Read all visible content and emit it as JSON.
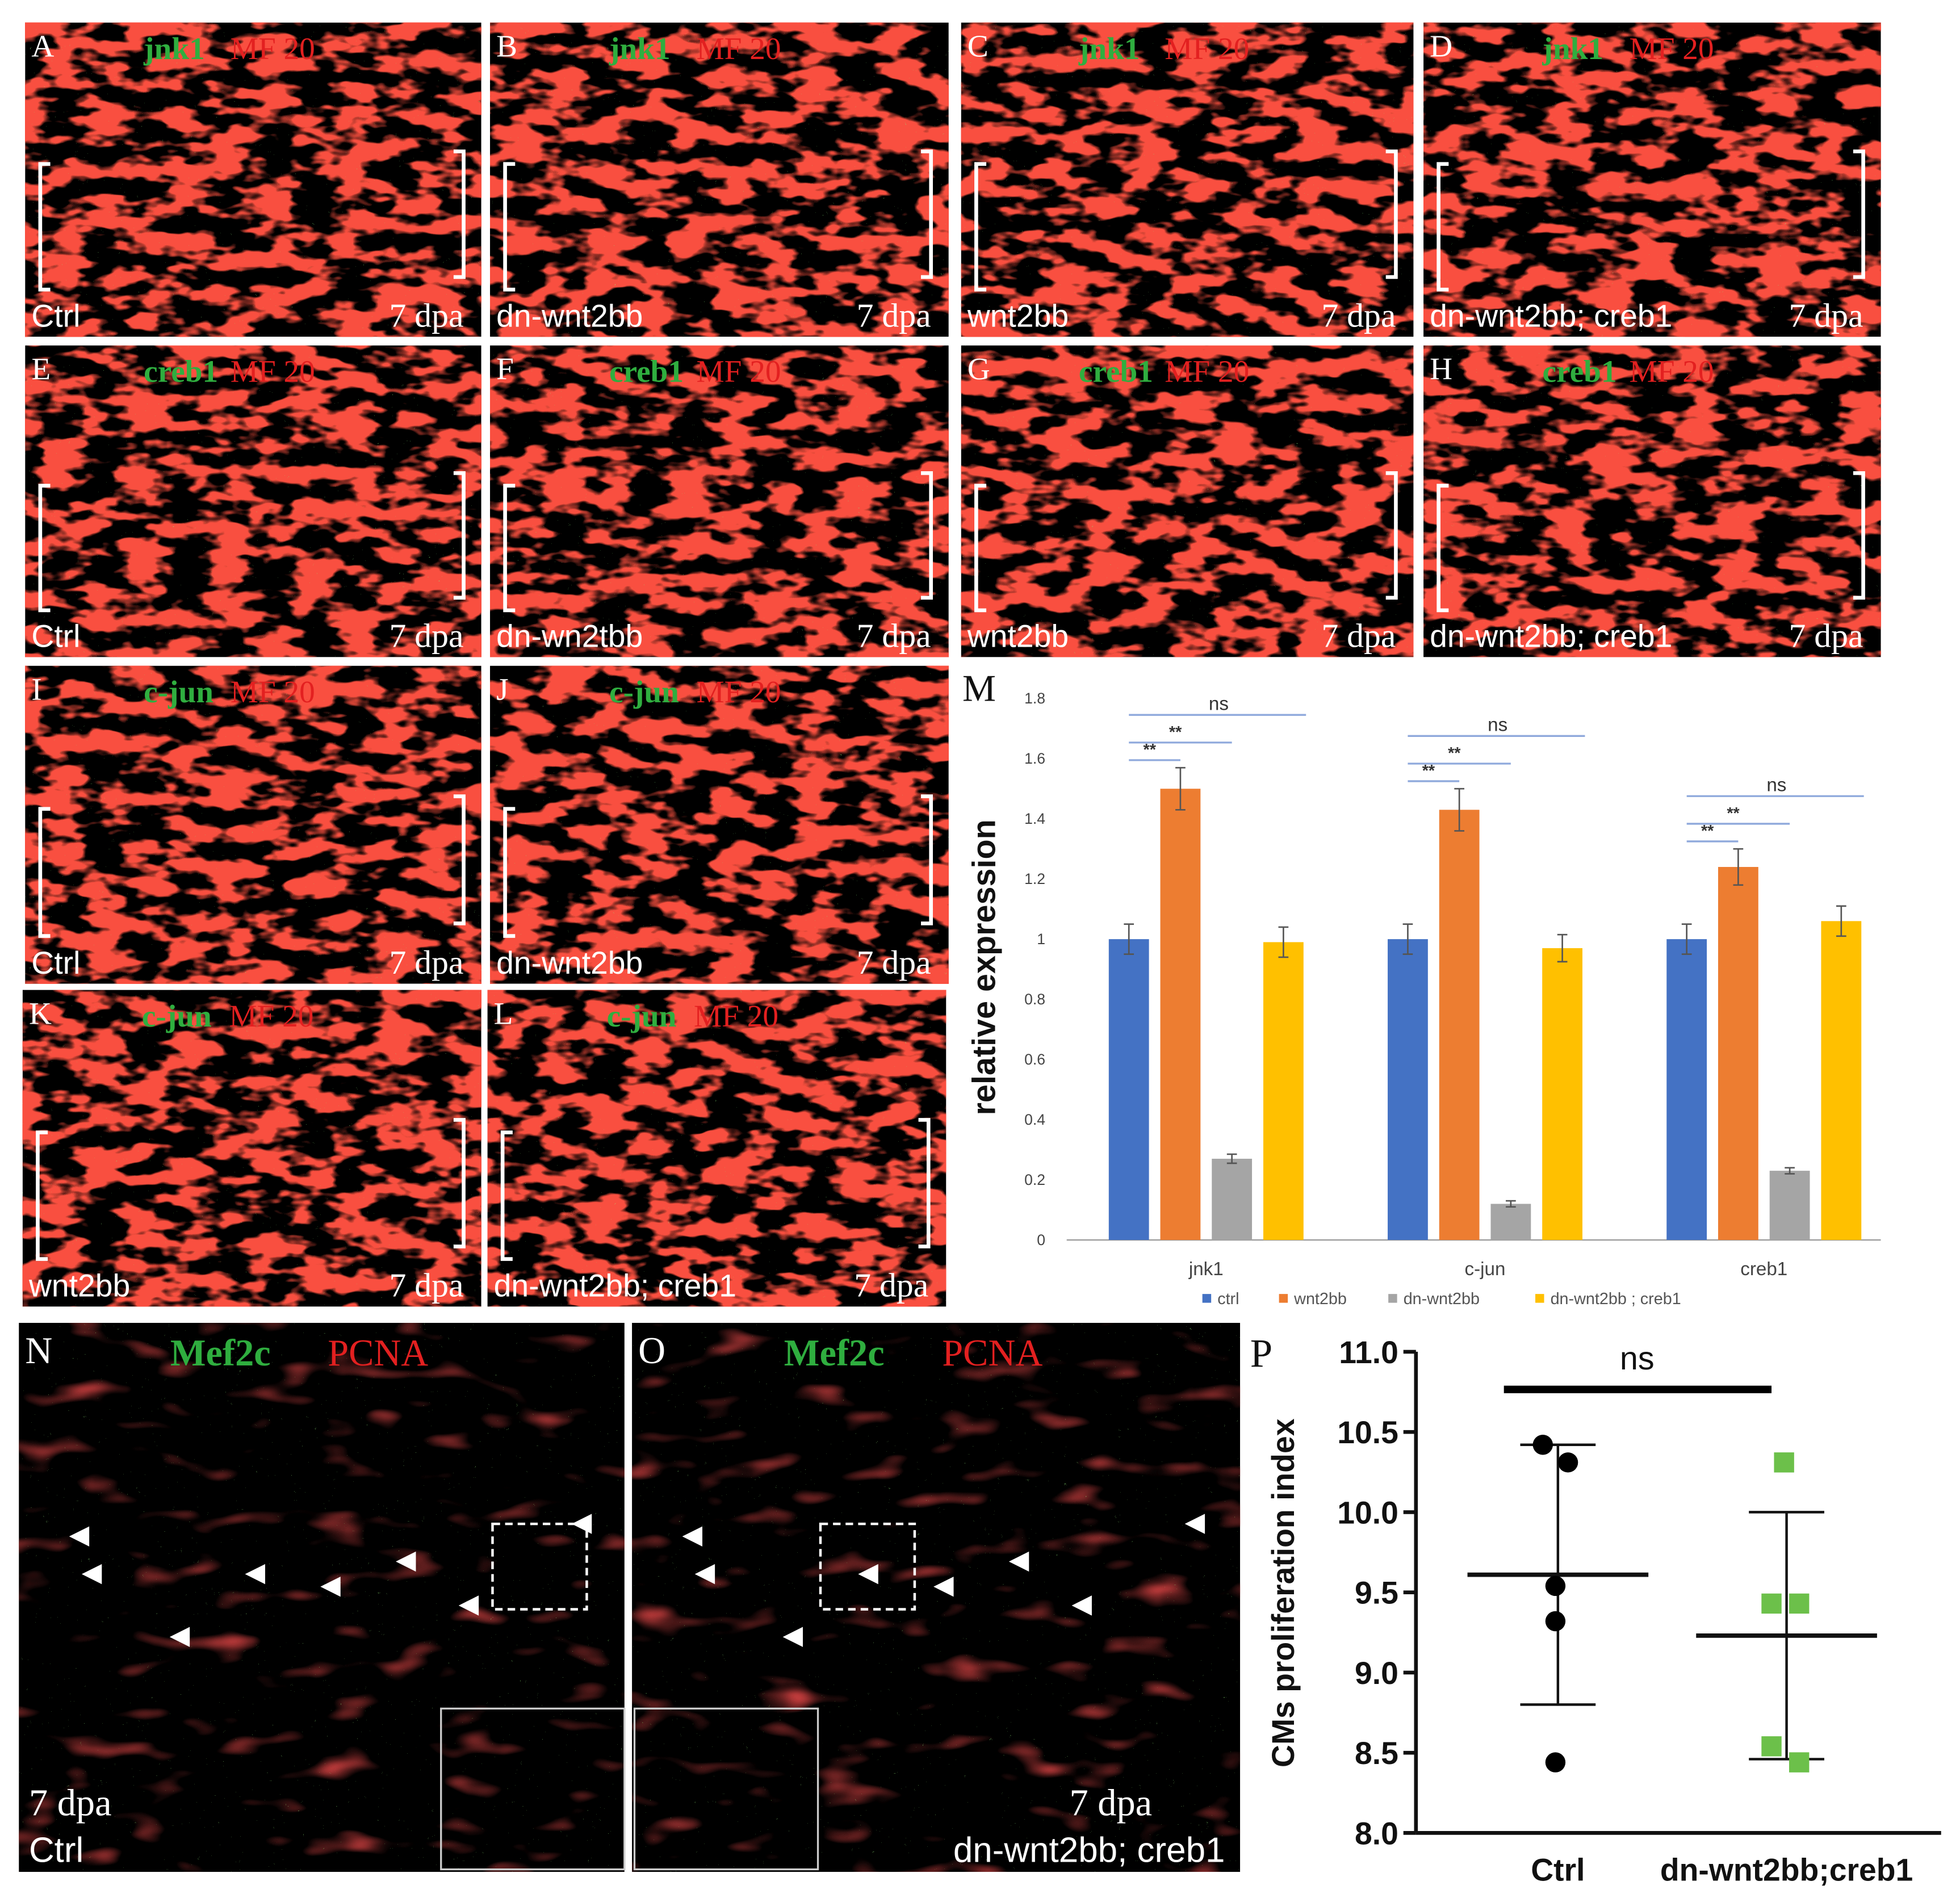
{
  "panels": [
    {
      "letter": "A",
      "stain1": "jnk1",
      "stain2": "MF 20",
      "condition": "Ctrl",
      "time": "7 dpa"
    },
    {
      "letter": "B",
      "stain1": "jnk1",
      "stain2": "MF 20",
      "condition": "dn-wnt2bb",
      "time": "7 dpa"
    },
    {
      "letter": "C",
      "stain1": "jnk1",
      "stain2": "MF 20",
      "condition": "wnt2bb",
      "time": "7 dpa"
    },
    {
      "letter": "D",
      "stain1": "jnk1",
      "stain2": "MF 20",
      "condition": "dn-wnt2bb; creb1",
      "time": "7 dpa"
    },
    {
      "letter": "E",
      "stain1": "creb1",
      "stain2": "MF 20",
      "condition": "Ctrl",
      "time": "7 dpa"
    },
    {
      "letter": "F",
      "stain1": "creb1",
      "stain2": "MF 20",
      "condition": "dn-wn2tbb",
      "time": "7 dpa"
    },
    {
      "letter": "G",
      "stain1": "creb1",
      "stain2": "MF 20",
      "condition": "wnt2bb",
      "time": "7 dpa"
    },
    {
      "letter": "H",
      "stain1": "creb1",
      "stain2": "MF 20",
      "condition": "dn-wnt2bb; creb1",
      "time": "7 dpa"
    },
    {
      "letter": "I",
      "stain1": "c-jun",
      "stain2": "MF 20",
      "condition": "Ctrl",
      "time": "7 dpa"
    },
    {
      "letter": "J",
      "stain1": "c-jun",
      "stain2": "MF 20",
      "condition": "dn-wnt2bb",
      "time": "7 dpa"
    },
    {
      "letter": "K",
      "stain1": "c-jun",
      "stain2": "MF 20",
      "condition": "wnt2bb",
      "time": "7 dpa"
    },
    {
      "letter": "L",
      "stain1": "c-jun",
      "stain2": "MF 20",
      "condition": "dn-wnt2bb; creb1",
      "time": "7 dpa"
    },
    {
      "letter": "N",
      "stain1": "Mef2c",
      "stain2": "PCNA",
      "condition": "Ctrl",
      "time": "7 dpa"
    },
    {
      "letter": "O",
      "stain1": "Mef2c",
      "stain2": "PCNA",
      "condition": "dn-wnt2bb; creb1",
      "time": "7 dpa"
    }
  ],
  "chart_data": [
    {
      "type": "bar",
      "panel": "M",
      "ylabel": "relative expression",
      "categories": [
        "jnk1",
        "c-jun",
        "creb1"
      ],
      "series": [
        {
          "name": "ctrl",
          "color": "#4472c4",
          "values": [
            1,
            1,
            1
          ],
          "errors": [
            0.05,
            0.05,
            0.05
          ]
        },
        {
          "name": "wnt2bb",
          "color": "#ed7d31",
          "values": [
            1.5,
            1.43,
            1.24
          ],
          "errors": [
            0.07,
            0.07,
            0.06
          ]
        },
        {
          "name": "dn-wnt2bb",
          "color": "#a5a5a5",
          "values": [
            0.27,
            0.12,
            0.23
          ],
          "errors": [
            0.015,
            0.01,
            0.01
          ]
        },
        {
          "name": "dn-wnt2bb ; creb1",
          "color": "#ffc000",
          "values": [
            0.99,
            0.97,
            1.06
          ],
          "errors": [
            0.05,
            0.045,
            0.05
          ]
        }
      ],
      "significance": [
        [
          "**",
          "**",
          "ns"
        ],
        [
          "**",
          "**",
          "ns"
        ],
        [
          "**",
          "**",
          "ns"
        ]
      ],
      "ylim": [
        0,
        1.8
      ],
      "yticks": [
        0,
        0.2,
        0.4,
        0.6,
        0.8,
        1,
        1.2,
        1.4,
        1.6,
        1.8
      ]
    },
    {
      "type": "scatter",
      "panel": "P",
      "ylabel": "CMs proliferation index",
      "annotation": "ns",
      "categories": [
        "Ctrl",
        "dn-wnt2bb;creb1"
      ],
      "series": [
        {
          "color": "#000000",
          "marker": "circle",
          "values": [
            10.42,
            10.31,
            9.54,
            9.32,
            8.44
          ],
          "mean": 9.61,
          "sd": 0.81
        },
        {
          "color": "#6cc04a",
          "marker": "square",
          "values": [
            10.31,
            9.43,
            9.43,
            8.54,
            8.44
          ],
          "mean": 9.23,
          "sd": 0.77
        }
      ],
      "ylim": [
        8,
        11
      ],
      "yticks": [
        {
          "value": 8,
          "label": "8.0"
        },
        {
          "value": 8.5,
          "label": "8.5"
        },
        {
          "value": 9,
          "label": "9.0"
        },
        {
          "value": 9.5,
          "label": "9.5"
        },
        {
          "value": 10,
          "label": "10.0"
        },
        {
          "value": 10.5,
          "label": "10.5"
        },
        {
          "value": 11,
          "label": "11.0"
        }
      ]
    }
  ]
}
